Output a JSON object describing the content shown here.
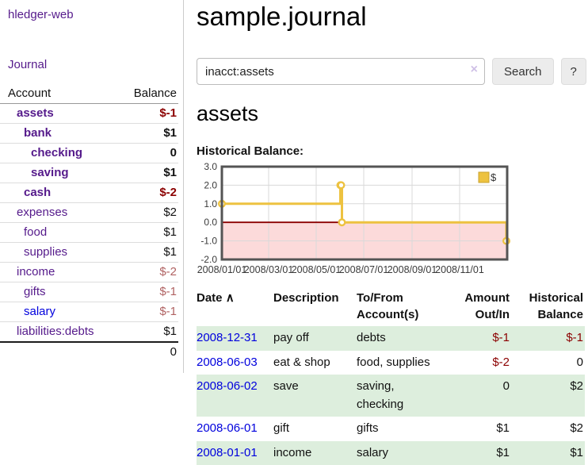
{
  "colors": {
    "link_purple": "#551a8b",
    "link_blue": "#0000dd",
    "negative_red": "#8b0000",
    "negative_soft": "#b06262",
    "row_stripe_green": "#ddeedd",
    "chart_gold": "#edc240",
    "chart_negative_fill": "#fcdada",
    "chart_zero_line": "#8b0000",
    "chart_border": "#545454",
    "chart_grid": "#d9d9d9"
  },
  "app": {
    "title": "hledger-web"
  },
  "sidebar": {
    "journal_link": "Journal",
    "accounts_header": {
      "account": "Account",
      "balance": "Balance"
    },
    "accounts": [
      {
        "name": "assets",
        "depth": 1,
        "balance": "$-1",
        "bold": true,
        "balance_class": "neg"
      },
      {
        "name": "bank",
        "depth": 2,
        "balance": "$1",
        "bold": true,
        "balance_class": ""
      },
      {
        "name": "checking",
        "depth": 3,
        "balance": "0",
        "bold": true,
        "balance_class": ""
      },
      {
        "name": "saving",
        "depth": 3,
        "balance": "$1",
        "bold": true,
        "balance_class": ""
      },
      {
        "name": "cash",
        "depth": 2,
        "balance": "$-2",
        "bold": true,
        "balance_class": "neg"
      },
      {
        "name": "expenses",
        "depth": 1,
        "balance": "$2",
        "bold": false,
        "balance_class": ""
      },
      {
        "name": "food",
        "depth": 2,
        "balance": "$1",
        "bold": false,
        "balance_class": ""
      },
      {
        "name": "supplies",
        "depth": 2,
        "balance": "$1",
        "bold": false,
        "balance_class": ""
      },
      {
        "name": "income",
        "depth": 1,
        "balance": "$-2",
        "bold": false,
        "balance_class": "neg-soft"
      },
      {
        "name": "gifts",
        "depth": 2,
        "balance": "$-1",
        "bold": false,
        "balance_class": "neg-soft"
      },
      {
        "name": "salary",
        "depth": 2,
        "balance": "$-1",
        "bold": false,
        "balance_class": "neg-soft",
        "link_color": "blue"
      },
      {
        "name": "liabilities:debts",
        "depth": 1,
        "balance": "$1",
        "bold": false,
        "balance_class": ""
      }
    ],
    "total": "0"
  },
  "main": {
    "title": "sample.journal",
    "search": {
      "value": "inacct:assets",
      "clear_icon": "×",
      "button_label": "Search",
      "help_label": "?"
    },
    "account_heading": "assets",
    "chart_label": "Historical Balance:"
  },
  "chart_data": {
    "type": "line",
    "title": "Historical Balance:",
    "series": [
      {
        "name": "$",
        "color": "#edc240",
        "step": true,
        "points": [
          [
            "2008-01-01",
            1
          ],
          [
            "2008-06-01",
            2
          ],
          [
            "2008-06-02",
            2
          ],
          [
            "2008-06-03",
            0
          ],
          [
            "2008-12-31",
            -1
          ]
        ]
      }
    ],
    "x_range": [
      "2008-01-01",
      "2009-01-01"
    ],
    "x_ticks": [
      "2008/01/01",
      "2008/03/01",
      "2008/05/01",
      "2008/07/01",
      "2008/09/01",
      "2008/11/01"
    ],
    "ylim": [
      -2,
      3
    ],
    "y_ticks": [
      3,
      2,
      1,
      0,
      -1,
      -2
    ],
    "grid": true,
    "legend": {
      "label": "$",
      "position": "top-right"
    },
    "negative_region_fill": "#fcdada",
    "zero_line_color": "#8b0000"
  },
  "register": {
    "headers": {
      "date": "Date",
      "sort_icon": "∧",
      "description": "Description",
      "accounts": "To/From Account(s)",
      "amount": "Amount Out/In",
      "balance": "Historical Balance"
    },
    "rows": [
      {
        "date": "2008-12-31",
        "description": "pay off",
        "accounts": "debts",
        "amount": "$-1",
        "balance": "$-1",
        "amount_class": "neg",
        "balance_class": "neg"
      },
      {
        "date": "2008-06-03",
        "description": "eat & shop",
        "accounts": "food, supplies",
        "amount": "$-2",
        "balance": "0",
        "amount_class": "neg",
        "balance_class": ""
      },
      {
        "date": "2008-06-02",
        "description": "save",
        "accounts": "saving, checking",
        "amount": "0",
        "balance": "$2",
        "amount_class": "",
        "balance_class": ""
      },
      {
        "date": "2008-06-01",
        "description": "gift",
        "accounts": "gifts",
        "amount": "$1",
        "balance": "$2",
        "amount_class": "",
        "balance_class": ""
      },
      {
        "date": "2008-01-01",
        "description": "income",
        "accounts": "salary",
        "amount": "$1",
        "balance": "$1",
        "amount_class": "",
        "balance_class": ""
      }
    ]
  }
}
